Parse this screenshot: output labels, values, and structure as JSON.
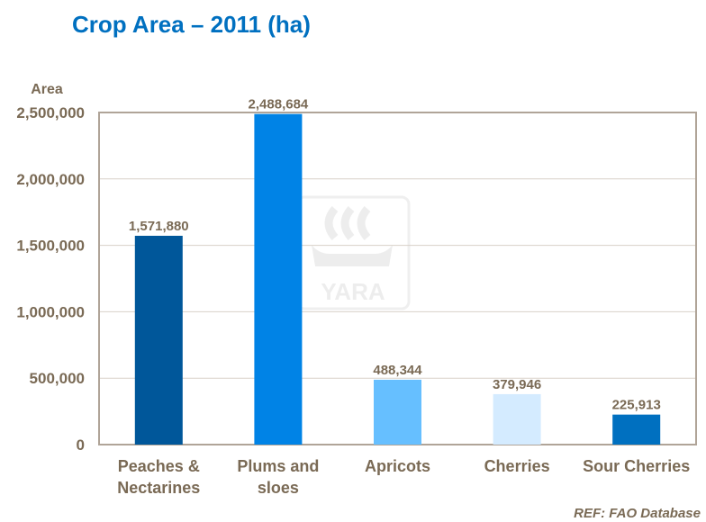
{
  "title": "Crop Area – 2011 (ha)",
  "reference": "REF: FAO Database",
  "watermark": "YARA",
  "chart_data": {
    "type": "bar",
    "title": "Crop Area – 2011 (ha)",
    "xlabel": "",
    "ylabel": "Area",
    "ylim": [
      0,
      2500000
    ],
    "yticks": [
      0,
      500000,
      1000000,
      1500000,
      2000000,
      2500000
    ],
    "ytick_labels": [
      "0",
      "500,000",
      "1,000,000",
      "1,500,000",
      "2,000,000",
      "2,500,000"
    ],
    "grid": true,
    "categories": [
      [
        "Peaches &",
        "Nectarines"
      ],
      [
        "Plums and",
        "sloes"
      ],
      [
        "Apricots"
      ],
      [
        "Cherries"
      ],
      [
        "Sour Cherries"
      ]
    ],
    "values": [
      1571880,
      2488684,
      488344,
      379946,
      225913
    ],
    "value_labels": [
      "1,571,880",
      "2,488,684",
      "488,344",
      "379,946",
      "225,913"
    ],
    "colors": [
      "#00579a",
      "#0083e6",
      "#66bfff",
      "#d4ebff",
      "#0070c0"
    ]
  }
}
